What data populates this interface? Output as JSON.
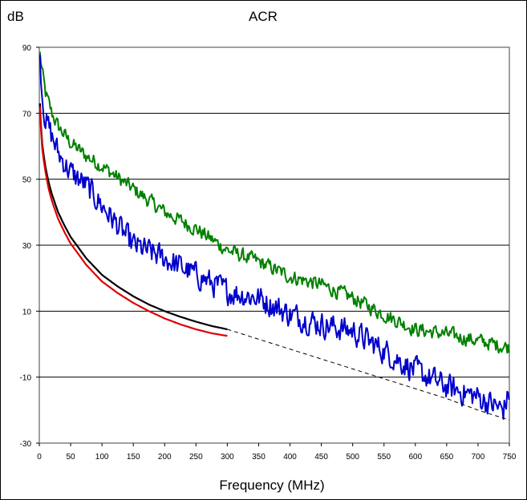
{
  "chart_data": {
    "type": "line",
    "title": "ACR",
    "xlabel": "Frequency (MHz)",
    "ylabel": "dB",
    "xlim": [
      0,
      750
    ],
    "ylim": [
      -30,
      90
    ],
    "x_ticks": [
      0,
      50,
      100,
      150,
      200,
      250,
      300,
      350,
      400,
      450,
      500,
      550,
      600,
      650,
      700,
      750
    ],
    "y_ticks": [
      -30,
      -10,
      10,
      30,
      50,
      70,
      90
    ],
    "grid": "horizontal",
    "legend": "none",
    "plot_background": "#ffffff",
    "series": [
      {
        "color": "#008000",
        "style": "solid",
        "noise": 2.0,
        "x": [
          1,
          5,
          10,
          20,
          30,
          50,
          75,
          100,
          150,
          200,
          250,
          300,
          350,
          400,
          450,
          500,
          550,
          600,
          650,
          700,
          750
        ],
        "y": [
          88,
          82,
          76,
          70,
          66,
          61,
          57,
          54,
          47,
          40,
          35,
          28.5,
          25,
          20.5,
          18,
          14,
          9,
          4.5,
          3,
          1,
          -1
        ]
      },
      {
        "color": "#0000cc",
        "style": "solid",
        "noise": 3.5,
        "x": [
          1,
          5,
          10,
          20,
          30,
          50,
          75,
          100,
          150,
          200,
          250,
          300,
          350,
          400,
          450,
          500,
          550,
          600,
          650,
          700,
          740,
          750
        ],
        "y": [
          87,
          75,
          68,
          63,
          58,
          52,
          48,
          42,
          30,
          26,
          21,
          16,
          14,
          9,
          6,
          4,
          -2,
          -8,
          -13,
          -16,
          -20,
          -15
        ]
      },
      {
        "color": "#000000",
        "style": "solid",
        "width": 2.2,
        "x": [
          1,
          2,
          5,
          10,
          15,
          20,
          30,
          40,
          50,
          75,
          100,
          125,
          150,
          175,
          200,
          225,
          250,
          275,
          300
        ],
        "y": [
          73,
          68,
          60,
          53.5,
          49,
          45.5,
          40,
          36,
          32.5,
          26,
          21,
          17.5,
          14.5,
          12,
          10,
          8.3,
          6.8,
          5.5,
          4.5
        ]
      },
      {
        "color": "#dd0000",
        "style": "solid",
        "width": 2.2,
        "x": [
          1,
          2,
          5,
          10,
          15,
          20,
          30,
          40,
          50,
          75,
          100,
          125,
          150,
          175,
          200,
          225,
          250,
          275,
          300
        ],
        "y": [
          72,
          67,
          58.5,
          52,
          47,
          43.5,
          38,
          34,
          30.5,
          24,
          19,
          15.5,
          12.5,
          10,
          7.8,
          6,
          4.5,
          3.3,
          2.5
        ]
      },
      {
        "color": "#000000",
        "style": "dashed",
        "width": 1,
        "x": [
          300,
          350,
          400,
          450,
          500,
          550,
          600,
          650,
          700,
          750
        ],
        "y": [
          4.5,
          1.5,
          -1.5,
          -4.5,
          -7.5,
          -10.5,
          -13.5,
          -16.5,
          -20,
          -23
        ]
      }
    ]
  }
}
